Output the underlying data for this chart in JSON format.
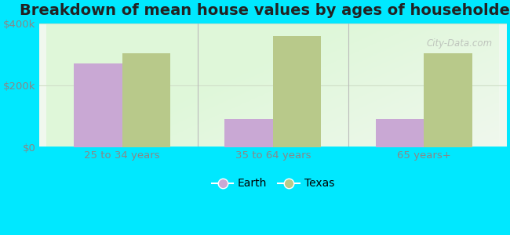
{
  "title": "Breakdown of mean house values by ages of householders",
  "categories": [
    "25 to 34 years",
    "35 to 64 years",
    "65 years+"
  ],
  "earth_values": [
    270000,
    90000,
    90000
  ],
  "texas_values": [
    305000,
    360000,
    305000
  ],
  "earth_color": "#c9a8d4",
  "texas_color": "#b8c98a",
  "background_outer": "#00e8ff",
  "ylim": [
    0,
    400000
  ],
  "yticks": [
    0,
    200000,
    400000
  ],
  "ytick_labels": [
    "$0",
    "$200k",
    "$400k"
  ],
  "legend_earth": "Earth",
  "legend_texas": "Texas",
  "title_fontsize": 14,
  "bar_width": 0.32,
  "tick_color": "#888888",
  "grid_color": "#d0dfc8",
  "watermark": "City-Data.com"
}
